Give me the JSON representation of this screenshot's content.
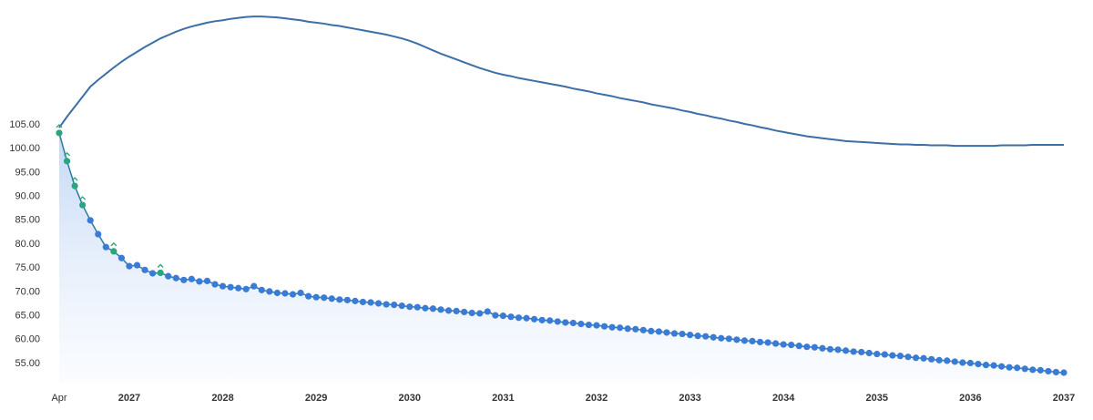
{
  "chart_data": {
    "type": "line",
    "categories": [
      "Apr",
      null,
      null,
      null,
      null,
      null,
      null,
      null,
      null,
      "2027",
      null,
      null,
      null,
      null,
      null,
      null,
      null,
      null,
      null,
      null,
      null,
      "2028",
      null,
      null,
      null,
      null,
      null,
      null,
      null,
      null,
      null,
      null,
      null,
      "2029",
      null,
      null,
      null,
      null,
      null,
      null,
      null,
      null,
      null,
      null,
      null,
      "2030",
      null,
      null,
      null,
      null,
      null,
      null,
      null,
      null,
      null,
      null,
      null,
      "2031",
      null,
      null,
      null,
      null,
      null,
      null,
      null,
      null,
      null,
      null,
      null,
      "2032",
      null,
      null,
      null,
      null,
      null,
      null,
      null,
      null,
      null,
      null,
      null,
      "2033",
      null,
      null,
      null,
      null,
      null,
      null,
      null,
      null,
      null,
      null,
      null,
      "2034",
      null,
      null,
      null,
      null,
      null,
      null,
      null,
      null,
      null,
      null,
      null,
      "2035",
      null,
      null,
      null,
      null,
      null,
      null,
      null,
      null,
      null,
      null,
      null,
      "2036",
      null,
      null,
      null,
      null,
      null,
      null,
      null,
      null,
      null,
      null,
      null,
      "2037"
    ],
    "series": [
      {
        "color": "#3b6fa6",
        "markers": false,
        "fill": false,
        "values": [
          104.4,
          106.7,
          108.8,
          110.9,
          113.0,
          114.4,
          115.7,
          117.0,
          118.2,
          119.3,
          120.3,
          121.3,
          122.2,
          123.1,
          123.8,
          124.5,
          125.1,
          125.6,
          126.0,
          126.4,
          126.7,
          126.9,
          127.2,
          127.4,
          127.6,
          127.7,
          127.7,
          127.6,
          127.5,
          127.3,
          127.1,
          126.9,
          126.6,
          126.4,
          126.2,
          125.9,
          125.7,
          125.4,
          125.1,
          124.8,
          124.5,
          124.2,
          123.9,
          123.5,
          123.1,
          122.6,
          122.0,
          121.3,
          120.6,
          119.9,
          119.3,
          118.7,
          118.1,
          117.5,
          116.9,
          116.4,
          115.9,
          115.5,
          115.2,
          114.8,
          114.5,
          114.2,
          113.9,
          113.6,
          113.3,
          113.0,
          112.6,
          112.3,
          112.0,
          111.6,
          111.3,
          111.0,
          110.6,
          110.3,
          110.0,
          109.7,
          109.3,
          109.0,
          108.7,
          108.4,
          108.0,
          107.7,
          107.3,
          107.0,
          106.6,
          106.3,
          105.9,
          105.6,
          105.2,
          104.9,
          104.5,
          104.2,
          103.8,
          103.5,
          103.2,
          102.9,
          102.6,
          102.4,
          102.2,
          102.0,
          101.8,
          101.6,
          101.5,
          101.4,
          101.3,
          101.2,
          101.1,
          101.0,
          100.9,
          100.9,
          100.8,
          100.8,
          100.7,
          100.7,
          100.7,
          100.6,
          100.6,
          100.6,
          100.6,
          100.6,
          100.6,
          100.7,
          100.7,
          100.7,
          100.7,
          100.8,
          100.8,
          100.8,
          100.8,
          100.8
        ]
      },
      {
        "color": "#3a7bd5",
        "markers": true,
        "fill": true,
        "highlight_points": [
          0,
          1,
          2,
          3,
          7,
          13
        ],
        "highlight_color": "#2aa57f",
        "values": [
          103.3,
          97.4,
          92.2,
          88.2,
          85.0,
          82.1,
          79.4,
          78.5,
          77.1,
          75.4,
          75.6,
          74.6,
          73.9,
          74.0,
          73.3,
          72.9,
          72.5,
          72.7,
          72.2,
          72.3,
          71.6,
          71.2,
          71.0,
          70.8,
          70.6,
          71.2,
          70.4,
          70.1,
          69.8,
          69.7,
          69.5,
          69.8,
          69.1,
          68.9,
          68.8,
          68.6,
          68.4,
          68.3,
          68.1,
          67.9,
          67.8,
          67.6,
          67.4,
          67.3,
          67.1,
          66.9,
          66.8,
          66.6,
          66.5,
          66.3,
          66.1,
          66.0,
          65.8,
          65.6,
          65.5,
          65.9,
          65.1,
          65.0,
          64.8,
          64.6,
          64.5,
          64.3,
          64.1,
          64.0,
          63.8,
          63.6,
          63.5,
          63.3,
          63.1,
          63.0,
          62.8,
          62.6,
          62.5,
          62.3,
          62.2,
          62.0,
          61.8,
          61.7,
          61.5,
          61.3,
          61.2,
          61.0,
          60.8,
          60.7,
          60.5,
          60.3,
          60.2,
          60.0,
          59.8,
          59.7,
          59.5,
          59.4,
          59.2,
          59.0,
          58.9,
          58.7,
          58.5,
          58.4,
          58.2,
          58.0,
          57.9,
          57.7,
          57.5,
          57.4,
          57.2,
          57.0,
          56.9,
          56.7,
          56.6,
          56.4,
          56.2,
          56.1,
          55.9,
          55.7,
          55.6,
          55.4,
          55.2,
          55.1,
          54.9,
          54.7,
          54.6,
          54.4,
          54.2,
          54.1,
          53.9,
          53.7,
          53.6,
          53.4,
          53.2,
          53.1
        ]
      }
    ],
    "ylim": [
      51,
      128
    ],
    "yticks": [
      {
        "value": 55,
        "label": "55.00"
      },
      {
        "value": 60,
        "label": "60.00"
      },
      {
        "value": 65,
        "label": "65.00"
      },
      {
        "value": 70,
        "label": "70.00"
      },
      {
        "value": 75,
        "label": "75.00"
      },
      {
        "value": 80,
        "label": "80.00"
      },
      {
        "value": 85,
        "label": "85.00"
      },
      {
        "value": 90,
        "label": "90.00"
      },
      {
        "value": 95,
        "label": "95.00"
      },
      {
        "value": 100,
        "label": "100.00"
      },
      {
        "value": 105,
        "label": "105.00"
      }
    ],
    "grid": false
  }
}
